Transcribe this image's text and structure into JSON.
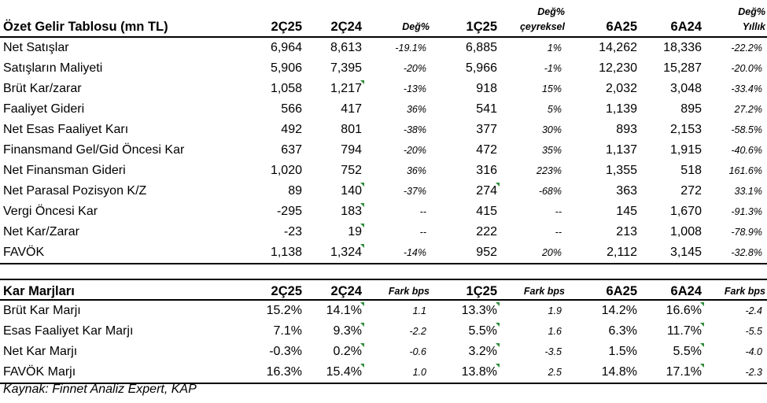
{
  "income": {
    "headers": {
      "label": "Özet Gelir Tablosu (mn TL)",
      "c1": "2Ç25",
      "c2": "2Ç24",
      "c3": "Değ%",
      "c4": "1Ç25",
      "c5a": "Değ%",
      "c5b": "çeyreksel",
      "c6": "6A25",
      "c7": "6A24",
      "c8a": "Değ%",
      "c8b": "Yıllık"
    },
    "rows": [
      {
        "label": "Net Satışlar",
        "c1": "6,964",
        "c2": "8,613",
        "c3": "-19.1%",
        "c4": "6,885",
        "c5": "1%",
        "c6": "14,262",
        "c7": "18,336",
        "c8": "-22.2%"
      },
      {
        "label": "Satışların Maliyeti",
        "c1": "5,906",
        "c2": "7,395",
        "c3": "-20%",
        "c4": "5,966",
        "c5": "-1%",
        "c6": "12,230",
        "c7": "15,287",
        "c8": "-20.0%"
      },
      {
        "label": "Brüt Kar/zarar",
        "c1": "1,058",
        "c2": "1,217",
        "c3": "-13%",
        "c4": "918",
        "c5": "15%",
        "c6": "2,032",
        "c7": "3,048",
        "c8": "-33.4%"
      },
      {
        "label": "Faaliyet Gideri",
        "c1": "566",
        "c2": "417",
        "c3": "36%",
        "c4": "541",
        "c5": "5%",
        "c6": "1,139",
        "c7": "895",
        "c8": "27.2%"
      },
      {
        "label": "Net Esas Faaliyet Karı",
        "c1": "492",
        "c2": "801",
        "c3": "-38%",
        "c4": "377",
        "c5": "30%",
        "c6": "893",
        "c7": "2,153",
        "c8": "-58.5%"
      },
      {
        "label": "Finansmand Gel/Gid Öncesi Kar",
        "c1": "637",
        "c2": "794",
        "c3": "-20%",
        "c4": "472",
        "c5": "35%",
        "c6": "1,137",
        "c7": "1,915",
        "c8": "-40.6%"
      },
      {
        "label": "Net Finansman Gideri",
        "c1": "1,020",
        "c2": "752",
        "c3": "36%",
        "c4": "316",
        "c5": "223%",
        "c6": "1,355",
        "c7": "518",
        "c8": "161.6%"
      },
      {
        "label": "Net Parasal Pozisyon K/Z",
        "c1": "89",
        "c2": "140",
        "c3": "-37%",
        "c4": "274",
        "c5": "-68%",
        "c6": "363",
        "c7": "272",
        "c8": "33.1%"
      },
      {
        "label": "Vergi Öncesi Kar",
        "c1": "-295",
        "c2": "183",
        "c3": "--",
        "c4": "415",
        "c5": "--",
        "c6": "145",
        "c7": "1,670",
        "c8": "-91.3%"
      },
      {
        "label": "Net Kar/Zarar",
        "c1": "-23",
        "c2": "19",
        "c3": "--",
        "c4": "222",
        "c5": "--",
        "c6": "213",
        "c7": "1,008",
        "c8": "-78.9%"
      },
      {
        "label": "FAVÖK",
        "c1": "1,138",
        "c2": "1,324",
        "c3": "-14%",
        "c4": "952",
        "c5": "20%",
        "c6": "2,112",
        "c7": "3,145",
        "c8": "-32.8%"
      }
    ]
  },
  "margins": {
    "headers": {
      "label": "Kar Marjları",
      "c1": "2Ç25",
      "c2": "2Ç24",
      "c3": "Fark bps",
      "c4": "1Ç25",
      "c5": "Fark bps",
      "c6": "6A25",
      "c7": "6A24",
      "c8": "Fark bps"
    },
    "rows": [
      {
        "label": "Brüt Kar Marjı",
        "c1": "15.2%",
        "c2": "14.1%",
        "c3": "1.1",
        "c4": "13.3%",
        "c5": "1.9",
        "c6": "14.2%",
        "c7": "16.6%",
        "c8": "-2.4"
      },
      {
        "label": "Esas Faaliyet Kar Marjı",
        "c1": "7.1%",
        "c2": "9.3%",
        "c3": "-2.2",
        "c4": "5.5%",
        "c5": "1.6",
        "c6": "6.3%",
        "c7": "11.7%",
        "c8": "-5.5"
      },
      {
        "label": "Net Kar Marjı",
        "c1": "-0.3%",
        "c2": "0.2%",
        "c3": "-0.6",
        "c4": "3.2%",
        "c5": "-3.5",
        "c6": "1.5%",
        "c7": "5.5%",
        "c8": "-4.0"
      },
      {
        "label": "FAVÖK Marjı",
        "c1": "16.3%",
        "c2": "15.4%",
        "c3": "1.0",
        "c4": "13.8%",
        "c5": "2.5",
        "c6": "14.8%",
        "c7": "17.1%",
        "c8": "-2.3"
      }
    ]
  },
  "source": "Kaynak: Finnet Analiz Expert, KAP"
}
